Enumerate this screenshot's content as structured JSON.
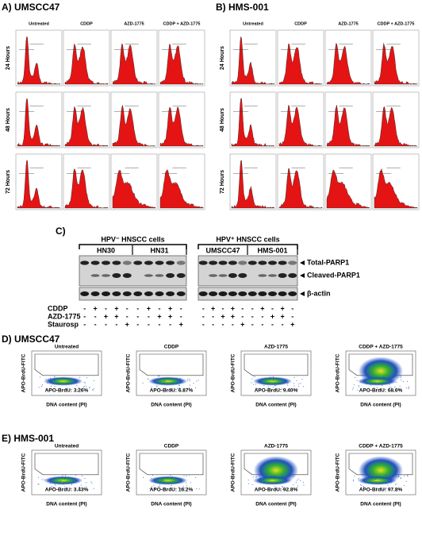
{
  "panel_a": {
    "label": "A) UMSCC47",
    "columns": [
      "Untreated",
      "CDDP",
      "AZD-1775",
      "CDDP + AZD-1775"
    ],
    "rows": [
      "24 Hours",
      "48 Hours",
      "72 Hours"
    ]
  },
  "panel_b": {
    "label": "B) HMS-001",
    "columns": [
      "Untreated",
      "CDDP",
      "AZD-1775",
      "CDDP + AZD-1775"
    ],
    "rows": [
      "24 Hours",
      "48 Hours",
      "72 Hours"
    ]
  },
  "panel_c": {
    "label": "C)",
    "groups": [
      "HPV⁻ HNSCC cells",
      "HPV⁺ HNSCC cells"
    ],
    "cell_lines": [
      "HN30",
      "HN31",
      "UMSCC47",
      "HMS-001"
    ],
    "bands": [
      "Total-PARP1",
      "Cleaved-PARP1",
      "β-actin"
    ],
    "treatments": [
      {
        "label": "CDDP",
        "signs": [
          "-",
          "+",
          "-",
          "+",
          "-",
          "-",
          "+",
          "-",
          "+",
          "-",
          "-",
          "+",
          "-",
          "+",
          "-",
          "-",
          "+",
          "-",
          "+",
          "-"
        ]
      },
      {
        "label": "AZD-1775",
        "signs": [
          "-",
          "-",
          "+",
          "+",
          "-",
          "-",
          "-",
          "+",
          "+",
          "-",
          "-",
          "-",
          "+",
          "+",
          "-",
          "-",
          "-",
          "+",
          "+",
          "-"
        ]
      },
      {
        "label": "Staurosp",
        "signs": [
          "-",
          "-",
          "-",
          "-",
          "+",
          "-",
          "-",
          "-",
          "-",
          "+",
          "-",
          "-",
          "-",
          "-",
          "+",
          "-",
          "-",
          "-",
          "-",
          "+"
        ]
      }
    ]
  },
  "panel_d": {
    "label": "D) UMSCC47",
    "y_label": "APO-BrdU-FITC",
    "x_label": "DNA content (PI)",
    "plots": [
      {
        "title": "Untreated",
        "result": "APO-BrdU: 3.26%"
      },
      {
        "title": "CDDP",
        "result": "APO-BrdU: 6.87%"
      },
      {
        "title": "AZD-1775",
        "result": "APO-BrdU: 9.40%"
      },
      {
        "title": "CDDP + AZD-1775",
        "result": "APO-BrdU: 68.6%"
      }
    ]
  },
  "panel_e": {
    "label": "E) HMS-001",
    "y_label": "APO-BrdU-FITC",
    "x_label": "DNA content (PI)",
    "plots": [
      {
        "title": "Untreated",
        "result": "APO-BrdU: 3.43%"
      },
      {
        "title": "CDDP",
        "result": "APO-BrdU: 16.2%"
      },
      {
        "title": "AZD-1775",
        "result": "APO-BrdU: 92.8%"
      },
      {
        "title": "CDDP + AZD-1775",
        "result": "APO-BrdU: 97.8%"
      }
    ]
  }
}
